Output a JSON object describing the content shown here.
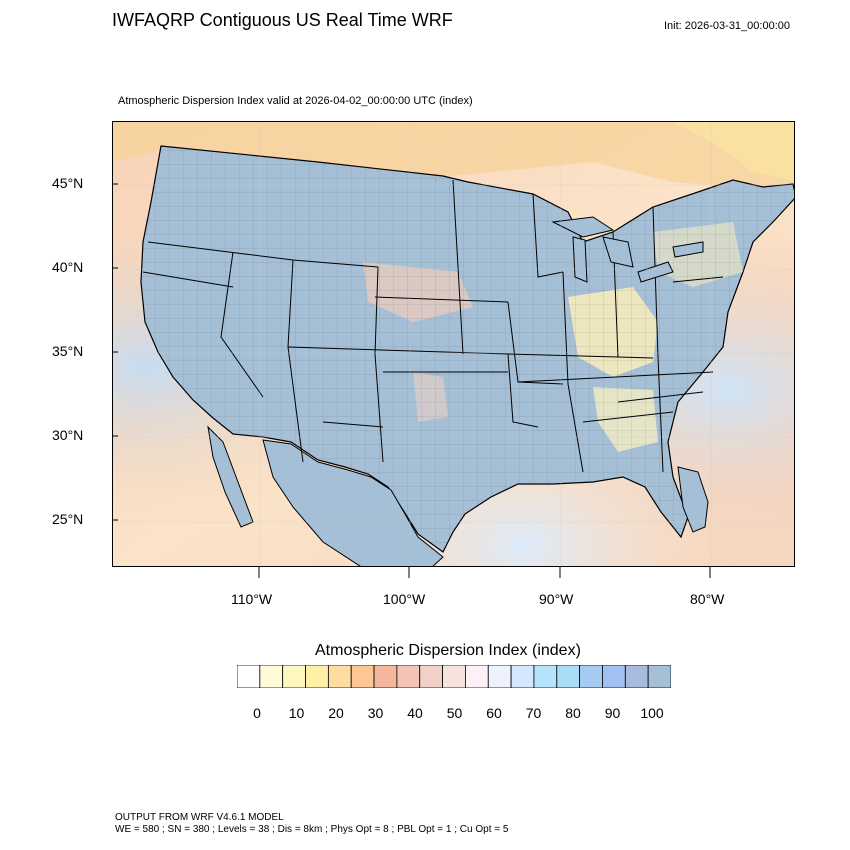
{
  "header": {
    "title": "IWFAQRP Contiguous US Real Time WRF",
    "init": "Init: 2026-03-31_00:00:00",
    "subtitle": "Atmospheric Dispersion Index valid at 2026-04-02_00:00:00 UTC   (index)"
  },
  "map": {
    "lat_labels": [
      "45°N",
      "40°N",
      "35°N",
      "30°N",
      "25°N"
    ],
    "lon_labels": [
      "110°W",
      "100°W",
      "90°W",
      "80°W"
    ],
    "lat_values": [
      45,
      40,
      35,
      30,
      25
    ],
    "lon_values": [
      -110,
      -100,
      -90,
      -80
    ],
    "extent": {
      "lon_min": -119.8,
      "lon_max": -74.5,
      "lat_min": 22.2,
      "lat_max": 48.4
    }
  },
  "legend": {
    "title": "Atmospheric Dispersion Index  (index)",
    "labels": [
      "0",
      "10",
      "20",
      "30",
      "40",
      "50",
      "60",
      "70",
      "80",
      "90",
      "100"
    ],
    "colors": [
      "#ffffff",
      "#fffbd9",
      "#fff7c0",
      "#ffefa6",
      "#ffdca0",
      "#fcc793",
      "#f5b69e",
      "#f2c3b6",
      "#f1d1c7",
      "#f6e3dc",
      "#fcf1f4",
      "#eef1fe",
      "#d5e6fd",
      "#b4e4fb",
      "#a9dcf7",
      "#a5cbf3",
      "#a2c0f1",
      "#a7bbdf",
      "#a5bfd6"
    ]
  },
  "footer": {
    "line1": "OUTPUT FROM WRF V4.6.1 MODEL",
    "line2": "WE = 580 ; SN = 380 ; Levels = 38 ; Dis = 8km ; Phys Opt = 8 ; PBL Opt = 1 ; Cu Opt = 5"
  }
}
